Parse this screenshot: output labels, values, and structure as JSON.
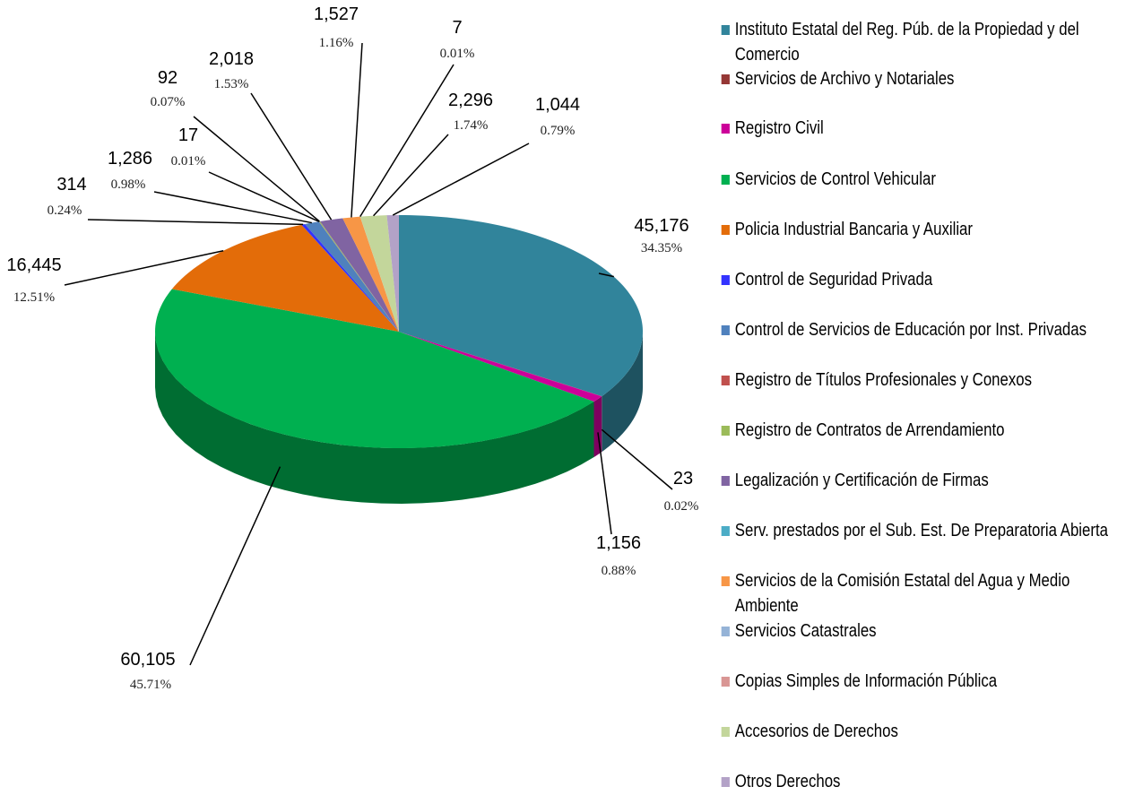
{
  "chart_data": {
    "type": "pie3d",
    "categories": [
      "Instituto Estatal del Reg. Púb. de la Propiedad y del Comercio",
      "Servicios de Archivo y Notariales",
      "Registro Civil",
      "Servicios de Control Vehicular",
      "Policia Industrial Bancaria y Auxiliar",
      "Control de Seguridad Privada",
      "Control de Servicios de Educación por Inst. Privadas",
      "Registro de Títulos Profesionales y Conexos",
      "Registro de Contratos de Arrendamiento",
      "Legalización y Certificación de Firmas",
      "Serv. prestados por el Sub. Est. De Preparatoria Abierta",
      "Servicios de la Comisión Estatal del Agua y Medio Ambiente",
      "Servicios Catastrales",
      "Copias Simples de Información Pública",
      "Accesorios de Derechos",
      "Otros Derechos"
    ],
    "values": [
      45176,
      23,
      1156,
      60105,
      16445,
      314,
      1286,
      17,
      92,
      2018,
      null,
      1527,
      7,
      null,
      2296,
      1044
    ],
    "value_labels": [
      "45,176",
      "23",
      "1,156",
      "60,105",
      "16,445",
      "314",
      "1,286",
      "17",
      "92",
      "2,018",
      null,
      "1,527",
      "7",
      null,
      "2,296",
      "1,044"
    ],
    "percent_labels": [
      "34.35%",
      "0.02%",
      "0.88%",
      "45.71%",
      "12.51%",
      "0.24%",
      "0.98%",
      "0.01%",
      "0.07%",
      "1.53%",
      null,
      "1.16%",
      "0.01%",
      null,
      "1.74%",
      "0.79%"
    ],
    "colors": [
      "#31849b",
      "#953735",
      "#cc0099",
      "#00b050",
      "#e36c09",
      "#3333ff",
      "#4f81bd",
      "#c0504d",
      "#9bbb59",
      "#8064a2",
      "#4bacc6",
      "#f79646",
      "#95b3d7",
      "#d99694",
      "#c3d69b",
      "#b3a2c7"
    ]
  }
}
